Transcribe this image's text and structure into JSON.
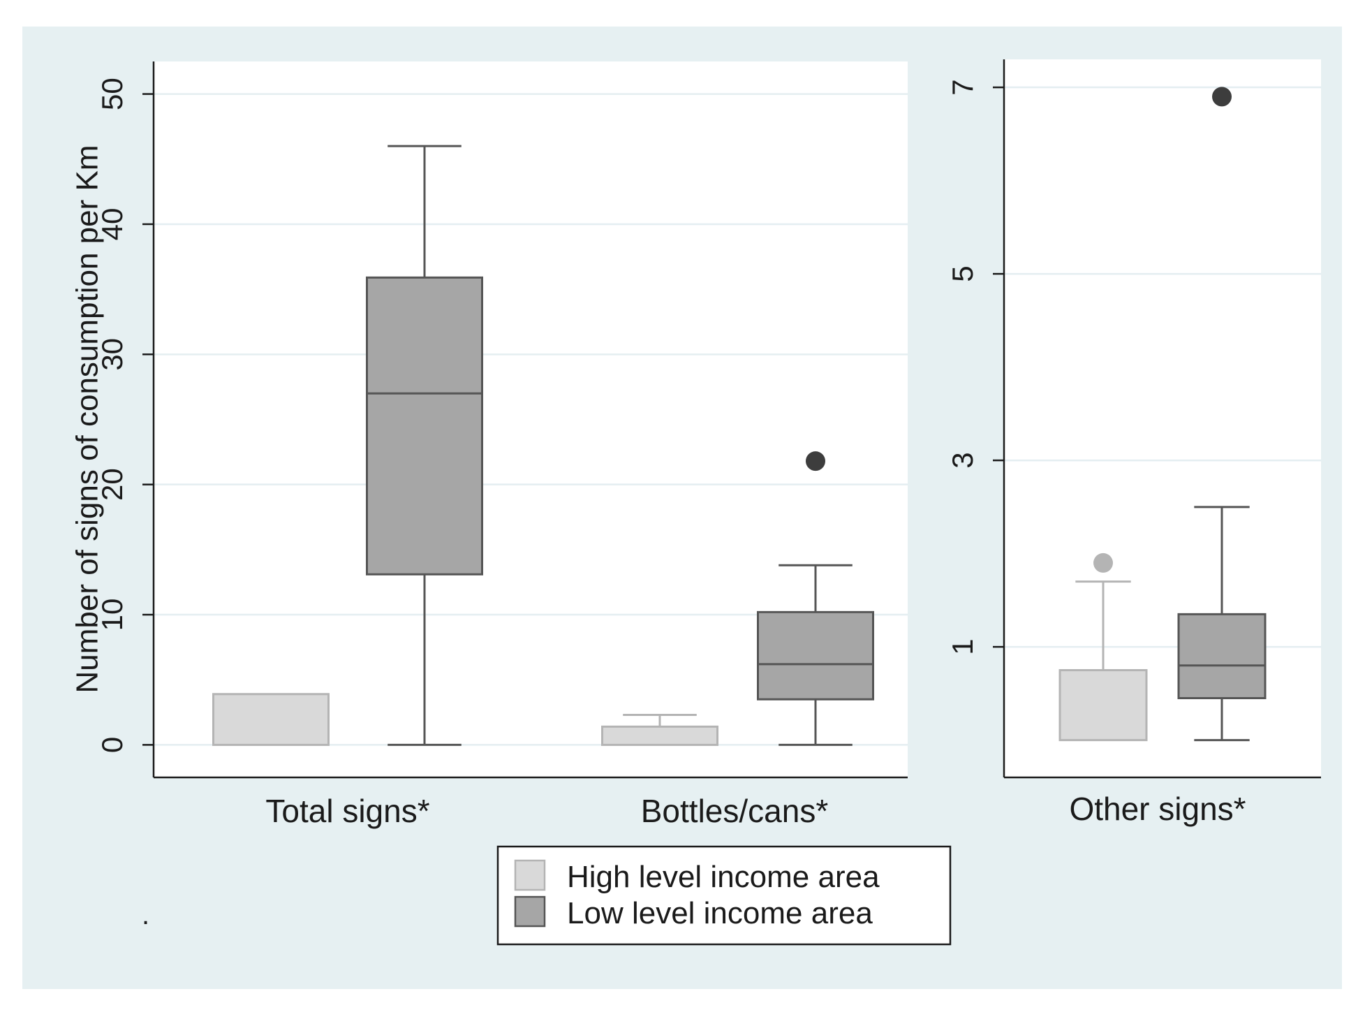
{
  "chart_data": {
    "type": "box",
    "ylabel": "Number of signs of consumption per Km",
    "legend": {
      "placement": "bottom-center",
      "entries": [
        {
          "name": "High level income area",
          "color": "#d9d9d9"
        },
        {
          "name": "Low level income area",
          "color": "#a6a6a6"
        }
      ]
    },
    "stray_mark": ".",
    "colors": {
      "background": "#e6f0f2",
      "grid": "#e4eef1",
      "high_fill": "#d9d9d9",
      "high_stroke": "#b4b4b4",
      "low_fill": "#a6a6a6",
      "low_stroke": "#555555",
      "outlier_high": "#b4b4b4",
      "outlier_low": "#3d3d3d"
    },
    "panels": [
      {
        "ylim": [
          -2.5,
          52.5
        ],
        "yticks": [
          0,
          10,
          20,
          30,
          40,
          50
        ],
        "categories": [
          {
            "label": "Total signs*",
            "boxes": [
              {
                "group": "High level income area",
                "min": 0,
                "q1": 0,
                "median": 0,
                "q3": 3.9,
                "max": 3.9,
                "outliers": []
              },
              {
                "group": "Low level income area",
                "min": 0,
                "q1": 13.1,
                "median": 27,
                "q3": 35.9,
                "max": 46,
                "outliers": []
              }
            ]
          },
          {
            "label": "Bottles/cans*",
            "boxes": [
              {
                "group": "High level income area",
                "min": 0,
                "q1": 0,
                "median": 0,
                "q3": 1.4,
                "max": 2.3,
                "outliers": []
              },
              {
                "group": "Low level income area",
                "min": 0,
                "q1": 3.5,
                "median": 6.2,
                "q3": 10.2,
                "max": 13.8,
                "outliers": [
                  21.8
                ]
              }
            ]
          }
        ]
      },
      {
        "ylim": [
          -0.4,
          7.3
        ],
        "yticks": [
          1,
          3,
          5,
          7
        ],
        "categories": [
          {
            "label": "Other signs*",
            "boxes": [
              {
                "group": "High level income area",
                "min": 0,
                "q1": 0,
                "median": 0,
                "q3": 0.75,
                "max": 1.7,
                "outliers": [
                  1.9
                ]
              },
              {
                "group": "Low level income area",
                "min": 0,
                "q1": 0.45,
                "median": 0.8,
                "q3": 1.35,
                "max": 2.5,
                "outliers": [
                  6.9
                ]
              }
            ]
          }
        ]
      }
    ]
  }
}
